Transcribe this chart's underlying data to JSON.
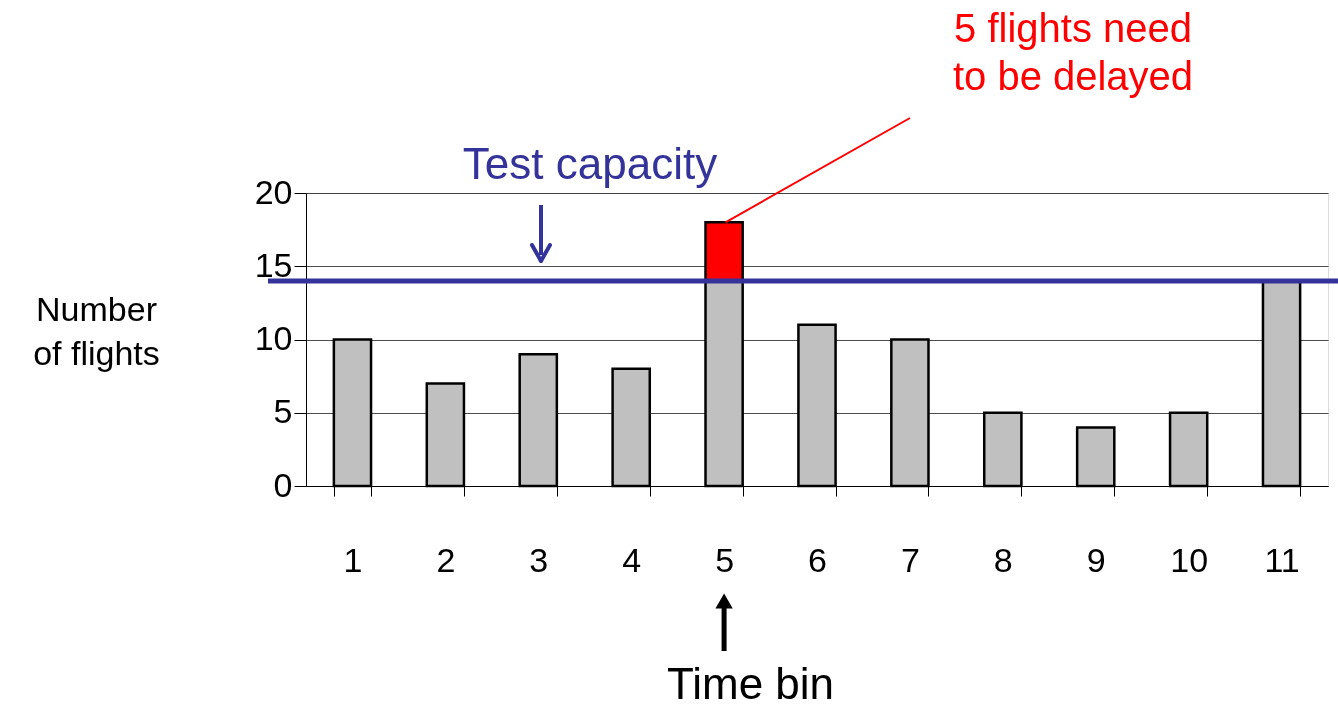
{
  "chart_data": {
    "type": "bar",
    "stacked": true,
    "categories": [
      "1",
      "2",
      "3",
      "4",
      "5",
      "6",
      "7",
      "8",
      "9",
      "10",
      "11"
    ],
    "series": [
      {
        "color": "#c0c0c0",
        "values": [
          10,
          7,
          9,
          8,
          14,
          11,
          10,
          5,
          4,
          5,
          14
        ]
      },
      {
        "color": "#ff0000",
        "values": [
          null,
          null,
          null,
          null,
          4,
          null,
          null,
          null,
          null,
          null,
          null
        ]
      }
    ],
    "xlabel": "Time bin",
    "ylabel": "Number\nof flights",
    "ylim": [
      0,
      20
    ],
    "yticks": [
      0,
      5,
      10,
      15,
      20
    ],
    "grid": "y",
    "legend": false,
    "ref_lines": [
      {
        "axis": "y",
        "value": 14,
        "label": "Test capacity",
        "color": "#333399"
      }
    ],
    "annotations": [
      {
        "text": "5 flights need\nto be delayed",
        "x": "5",
        "y": 18
      }
    ]
  }
}
